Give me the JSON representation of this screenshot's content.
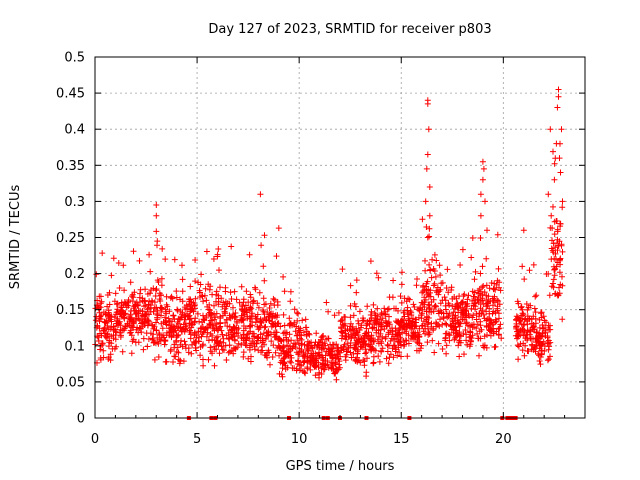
{
  "chart_data": {
    "type": "scatter",
    "title": "Day 127 of 2023, SRMTID for receiver p803",
    "xlabel": "GPS time / hours",
    "ylabel": "SRMTID / TECUs",
    "xlim": [
      0,
      24
    ],
    "ylim": [
      0,
      0.5
    ],
    "xticks": [
      0,
      5,
      10,
      15,
      20
    ],
    "xtick_labels": [
      "0",
      "5",
      "10",
      "15",
      "20"
    ],
    "yticks": [
      0,
      0.05,
      0.1,
      0.15,
      0.2,
      0.25,
      0.3,
      0.35,
      0.4,
      0.45,
      0.5
    ],
    "ytick_labels": [
      "0",
      "0.05",
      "0.1",
      "0.15",
      "0.2",
      "0.25",
      "0.3",
      "0.35",
      "0.4",
      "0.45",
      "0.5"
    ],
    "grid": true,
    "marker": "+",
    "color": "#ff0000",
    "series": [
      {
        "name": "SRMTID",
        "segments": [
          {
            "x0": 0.0,
            "x1": 1.0,
            "y_low": 0.06,
            "y_high": 0.19
          },
          {
            "x0": 1.0,
            "x1": 2.5,
            "y_low": 0.08,
            "y_high": 0.2
          },
          {
            "x0": 2.5,
            "x1": 3.3,
            "y_low": 0.07,
            "y_high": 0.22
          },
          {
            "x0": 3.3,
            "x1": 4.5,
            "y_low": 0.06,
            "y_high": 0.19
          },
          {
            "x0": 4.5,
            "x1": 6.0,
            "y_low": 0.05,
            "y_high": 0.21
          },
          {
            "x0": 6.0,
            "x1": 7.5,
            "y_low": 0.05,
            "y_high": 0.2
          },
          {
            "x0": 7.5,
            "x1": 9.0,
            "y_low": 0.05,
            "y_high": 0.2
          },
          {
            "x0": 9.0,
            "x1": 10.5,
            "y_low": 0.04,
            "y_high": 0.16
          },
          {
            "x0": 10.5,
            "x1": 12.0,
            "y_low": 0.04,
            "y_high": 0.13
          },
          {
            "x0": 12.0,
            "x1": 13.5,
            "y_low": 0.05,
            "y_high": 0.17
          },
          {
            "x0": 13.5,
            "x1": 15.0,
            "y_low": 0.06,
            "y_high": 0.18
          },
          {
            "x0": 15.0,
            "x1": 16.0,
            "y_low": 0.07,
            "y_high": 0.18
          },
          {
            "x0": 16.0,
            "x1": 17.0,
            "y_low": 0.08,
            "y_high": 0.25
          },
          {
            "x0": 17.0,
            "x1": 18.5,
            "y_low": 0.07,
            "y_high": 0.2
          },
          {
            "x0": 18.5,
            "x1": 19.9,
            "y_low": 0.07,
            "y_high": 0.22
          },
          {
            "x0": 20.6,
            "x1": 21.6,
            "y_low": 0.07,
            "y_high": 0.18
          },
          {
            "x0": 21.6,
            "x1": 22.3,
            "y_low": 0.06,
            "y_high": 0.16
          },
          {
            "x0": 22.3,
            "x1": 22.9,
            "y_low": 0.1,
            "y_high": 0.35
          }
        ],
        "spikes": [
          {
            "x": 3.0,
            "y": 0.295
          },
          {
            "x": 3.0,
            "y": 0.28
          },
          {
            "x": 3.05,
            "y": 0.245
          },
          {
            "x": 8.1,
            "y": 0.31
          },
          {
            "x": 9.0,
            "y": 0.263
          },
          {
            "x": 8.3,
            "y": 0.253
          },
          {
            "x": 16.3,
            "y": 0.44
          },
          {
            "x": 16.3,
            "y": 0.435
          },
          {
            "x": 16.35,
            "y": 0.4
          },
          {
            "x": 16.3,
            "y": 0.365
          },
          {
            "x": 16.25,
            "y": 0.345
          },
          {
            "x": 16.4,
            "y": 0.32
          },
          {
            "x": 16.2,
            "y": 0.3
          },
          {
            "x": 16.4,
            "y": 0.28
          },
          {
            "x": 16.3,
            "y": 0.25
          },
          {
            "x": 19.0,
            "y": 0.355
          },
          {
            "x": 19.05,
            "y": 0.345
          },
          {
            "x": 19.0,
            "y": 0.33
          },
          {
            "x": 18.9,
            "y": 0.31
          },
          {
            "x": 19.1,
            "y": 0.3
          },
          {
            "x": 18.9,
            "y": 0.28
          },
          {
            "x": 19.2,
            "y": 0.26
          },
          {
            "x": 22.7,
            "y": 0.455
          },
          {
            "x": 22.7,
            "y": 0.445
          },
          {
            "x": 22.65,
            "y": 0.43
          },
          {
            "x": 22.85,
            "y": 0.4
          },
          {
            "x": 22.3,
            "y": 0.4
          },
          {
            "x": 22.6,
            "y": 0.38
          },
          {
            "x": 22.75,
            "y": 0.36
          },
          {
            "x": 22.8,
            "y": 0.34
          },
          {
            "x": 22.5,
            "y": 0.33
          },
          {
            "x": 22.2,
            "y": 0.31
          },
          {
            "x": 22.9,
            "y": 0.3
          },
          {
            "x": 21.0,
            "y": 0.26
          }
        ],
        "zeros": [
          4.6,
          5.7,
          5.9,
          9.5,
          11.2,
          11.4,
          12.0,
          13.3,
          15.4,
          19.95,
          20.2,
          20.3,
          20.5,
          20.6
        ]
      }
    ]
  }
}
